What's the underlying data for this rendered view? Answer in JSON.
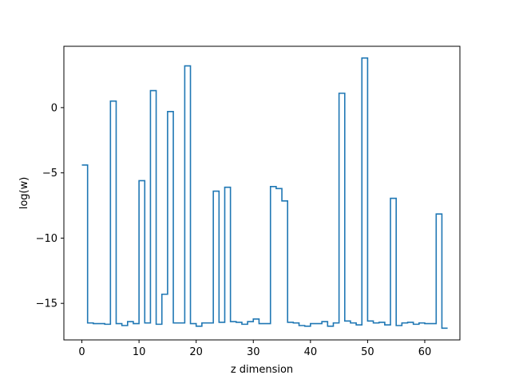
{
  "chart_data": {
    "type": "line",
    "style": "step",
    "xlabel": "z dimension",
    "ylabel": "log(w)",
    "xlim": [
      -3.15,
      66.15
    ],
    "ylim": [
      -17.8,
      4.7
    ],
    "x_ticks": [
      0,
      10,
      20,
      30,
      40,
      50,
      60
    ],
    "y_ticks": [
      -15,
      -10,
      -5,
      0
    ],
    "grid": false,
    "color": "#1f77b4",
    "series": [
      {
        "x": [
          0,
          1,
          2,
          3,
          4,
          5,
          6,
          7,
          8,
          9,
          10,
          11,
          12,
          13,
          14,
          15,
          16,
          17,
          18,
          19,
          20,
          21,
          22,
          23,
          24,
          25,
          26,
          27,
          28,
          29,
          30,
          31,
          32,
          33,
          34,
          35,
          36,
          37,
          38,
          39,
          40,
          41,
          42,
          43,
          44,
          45,
          46,
          47,
          48,
          49,
          50,
          51,
          52,
          53,
          54,
          55,
          56,
          57,
          58,
          59,
          60,
          61,
          62,
          63
        ],
        "values": [
          -4.4,
          -16.5,
          -16.55,
          -16.55,
          -16.6,
          0.5,
          -16.55,
          -16.7,
          -16.4,
          -16.55,
          -5.6,
          -16.5,
          1.3,
          -16.6,
          -14.3,
          -0.3,
          -16.5,
          -16.5,
          3.2,
          -16.55,
          -16.75,
          -16.5,
          -16.5,
          -6.4,
          -16.45,
          -6.1,
          -16.4,
          -16.45,
          -16.6,
          -16.4,
          -16.2,
          -16.55,
          -16.55,
          -6.05,
          -6.2,
          -7.15,
          -16.45,
          -16.5,
          -16.7,
          -16.75,
          -16.55,
          -16.55,
          -16.4,
          -16.75,
          -16.5,
          1.1,
          -16.35,
          -16.5,
          -16.65,
          3.8,
          -16.35,
          -16.5,
          -16.45,
          -16.65,
          -6.95,
          -16.7,
          -16.5,
          -16.45,
          -16.6,
          -16.5,
          -16.55,
          -16.55,
          -8.15,
          -16.9
        ]
      }
    ]
  }
}
